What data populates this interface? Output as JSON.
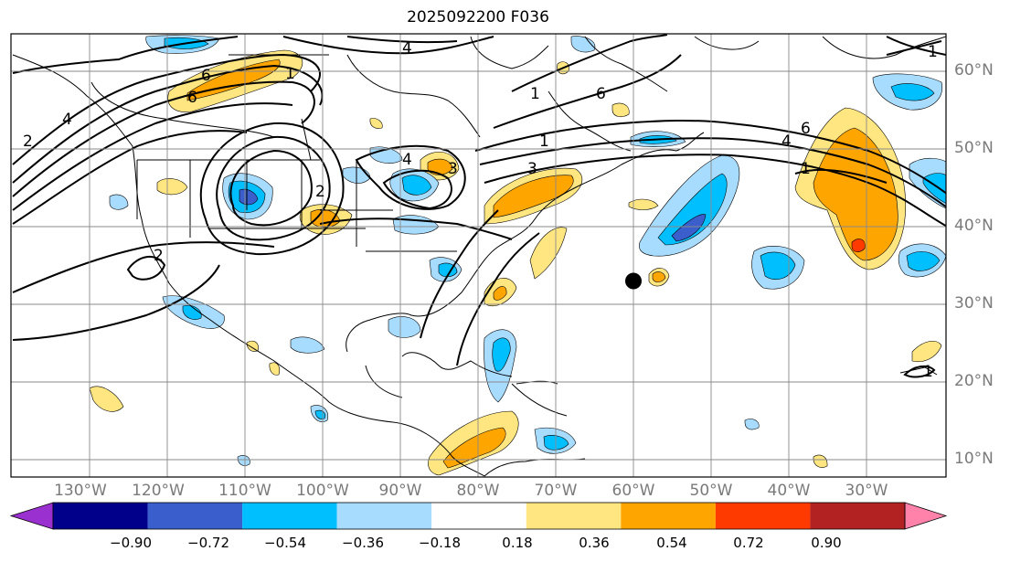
{
  "title": "2025092200 F036",
  "longitude_labels": [
    "130°W",
    "120°W",
    "110°W",
    "100°W",
    "90°W",
    "80°W",
    "70°W",
    "60°W",
    "50°W",
    "40°W",
    "30°W"
  ],
  "latitude_labels": [
    "60°N",
    "50°N",
    "40°N",
    "30°N",
    "20°N",
    "10°N"
  ],
  "colorbar": {
    "tick_labels": [
      "−0.90",
      "−0.72",
      "−0.54",
      "−0.36",
      "−0.18",
      "0.18",
      "0.36",
      "0.54",
      "0.72",
      "0.90"
    ],
    "colors": [
      "#9b30d0",
      "#00008b",
      "#3a5fcd",
      "#00bfff",
      "#a8dcff",
      "#ffffff",
      "#ffe680",
      "#ffa500",
      "#ff3a00",
      "#b22222",
      "#ff82ab"
    ],
    "under_color": "#9b30d0",
    "over_color": "#ff82ab"
  },
  "contour_labels": [
    "6",
    "4",
    "1",
    "4",
    "6",
    "1",
    "3",
    "2",
    "2",
    "1",
    "6",
    "4",
    "1",
    "2",
    "4",
    "6",
    "1",
    "3",
    "1"
  ],
  "marker": {
    "lon": -60,
    "lat": 33,
    "color": "#000000"
  },
  "map": {
    "extent": {
      "lon_min": -135,
      "lon_max": -15,
      "lat_min": 8,
      "lat_max": 65
    },
    "grid": true,
    "projection": "plate carree"
  }
}
